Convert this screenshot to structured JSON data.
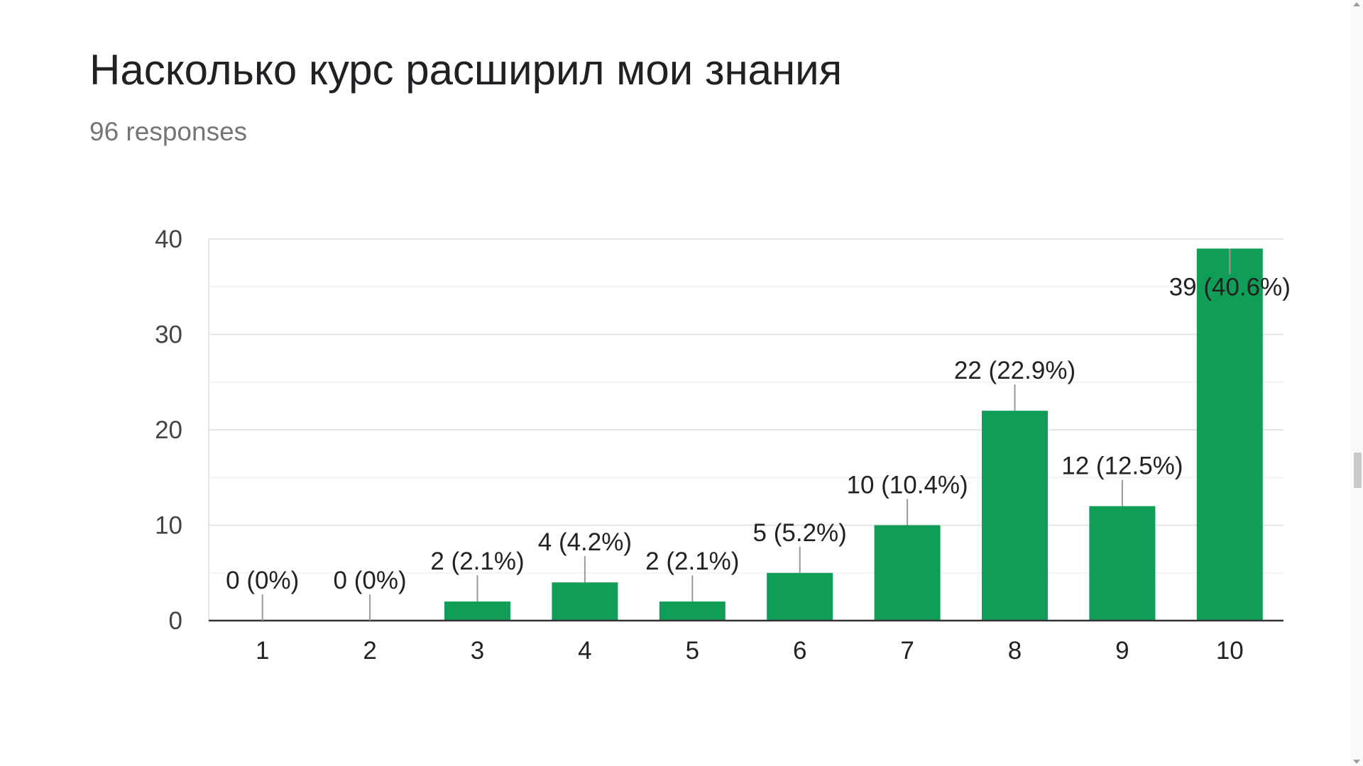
{
  "chart_data": {
    "type": "bar",
    "title": "Насколько курс расширил мои знания",
    "subtitle": "96 responses",
    "categories": [
      "1",
      "2",
      "3",
      "4",
      "5",
      "6",
      "7",
      "8",
      "9",
      "10"
    ],
    "values": [
      0,
      0,
      2,
      4,
      2,
      5,
      10,
      22,
      12,
      39
    ],
    "data_labels": [
      "0 (0%)",
      "0 (0%)",
      "2 (2.1%)",
      "4 (4.2%)",
      "2 (2.1%)",
      "5 (5.2%)",
      "10 (10.4%)",
      "22 (22.9%)",
      "12 (12.5%)",
      "39 (40.6%)"
    ],
    "ylim": [
      0,
      40
    ],
    "yticks": [
      0,
      10,
      20,
      30,
      40
    ],
    "grid": true,
    "bar_color": "#0f9d58",
    "xlabel": "",
    "ylabel": ""
  }
}
